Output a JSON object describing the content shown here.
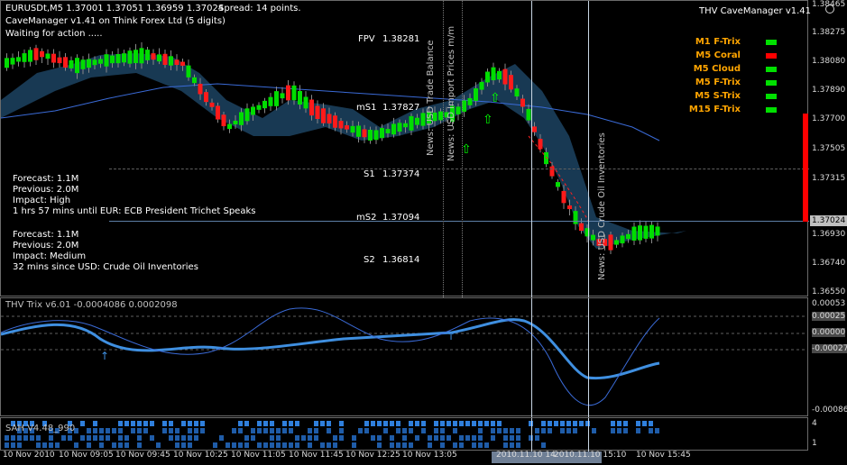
{
  "header": {
    "symbol_line": "EURUSDt,M5  1.37001 1.37051 1.36959 1.37024",
    "spread": "Spread: 14 points.",
    "manager": "CaveManager v1.41 on Think Forex Ltd (5 digits)",
    "status": "Waiting for action .....",
    "indicator_name": "THV CaveManager v1.41"
  },
  "timeframes": [
    {
      "label": "M1 F-Trix",
      "status_color": "#00e000"
    },
    {
      "label": "M5 Coral",
      "status_color": "#ff0000"
    },
    {
      "label": "M5 Cloud",
      "status_color": "#00e000"
    },
    {
      "label": "M5 F-Trix",
      "status_color": "#00e000"
    },
    {
      "label": "M5 S-Trix",
      "status_color": "#00e000"
    },
    {
      "label": "M15 F-Trix",
      "status_color": "#00e000"
    }
  ],
  "levels": {
    "fpv": "FPV",
    "fpv_val": "1.38281",
    "ms1": "mS1",
    "ms1_val": "1.37827",
    "s1": "S1",
    "s1_val": "1.37374",
    "ms2": "mS2",
    "ms2_val": "1.37094",
    "s2": "S2",
    "s2_val": "1.36814"
  },
  "news": {
    "block1": {
      "forecast": "Forecast: 1.1M",
      "previous": "Previous: 2.0M",
      "impact": "Impact: High",
      "time": "1 hrs 57 mins until EUR: ECB President Trichet Speaks"
    },
    "block2": {
      "forecast": "Forecast: 1.1M",
      "previous": "Previous: 2.0M",
      "impact": "Impact: Medium",
      "time": "32 mins since USD: Crude Oil Inventories"
    },
    "vertical_1": "News: USD Trade Balance",
    "vertical_2": "News: USD Import Prices m/m",
    "vertical_3": "News: USD Crude Oil Inventories"
  },
  "price_axis": [
    "1.38465",
    "1.38275",
    "1.38080",
    "1.37890",
    "1.37700",
    "1.37505",
    "1.37315",
    "1.37024",
    "1.36930",
    "1.36740",
    "1.36550"
  ],
  "current_price": "1.37024",
  "subwindow1": {
    "title": "THV Trix v6.01 -0.0004086 0.0002098",
    "axis": [
      "0.00053",
      "0.00025",
      "0.00000",
      "-0.00027",
      "-0.00086"
    ]
  },
  "subwindow2": {
    "title": "SAH V4.48_990",
    "axis": [
      "4",
      "1"
    ]
  },
  "date_axis": [
    "10 Nov 2010",
    "10 Nov 09:05",
    "10 Nov 09:45",
    "10 Nov 10:25",
    "10 Nov 11:05",
    "10 Nov 11:45",
    "10 Nov 12:25",
    "10 Nov 13:05",
    "2010.11.10 14",
    "2010.11.10 15:10",
    "10 Nov 15:45"
  ]
}
